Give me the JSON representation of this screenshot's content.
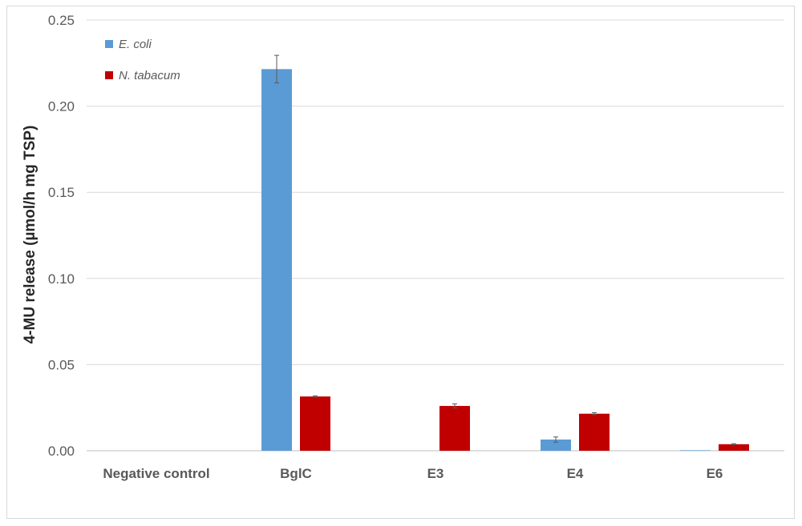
{
  "chart_data": {
    "type": "bar",
    "title": "",
    "xlabel": "",
    "ylabel": "4-MU release (µmol/h mg TSP)",
    "ylim": [
      0,
      0.25
    ],
    "yticks": [
      "0.00",
      "0.05",
      "0.10",
      "0.15",
      "0.20",
      "0.25"
    ],
    "grid": true,
    "legend_position": "top-left",
    "categories": [
      "Negative control",
      "BglC",
      "E3",
      "E4",
      "E6"
    ],
    "series": [
      {
        "name": "E. coli",
        "color": "#5b9bd5",
        "values": [
          0,
          0.2215,
          0,
          0.0065,
          0.0003
        ],
        "errors": [
          0,
          0.008,
          0,
          0.0015,
          0
        ]
      },
      {
        "name": "N. tabacum",
        "color": "#c00000",
        "values": [
          0,
          0.0315,
          0.026,
          0.0215,
          0.0038
        ],
        "errors": [
          0,
          0.0003,
          0.0012,
          0.0006,
          0.0003
        ]
      }
    ]
  }
}
